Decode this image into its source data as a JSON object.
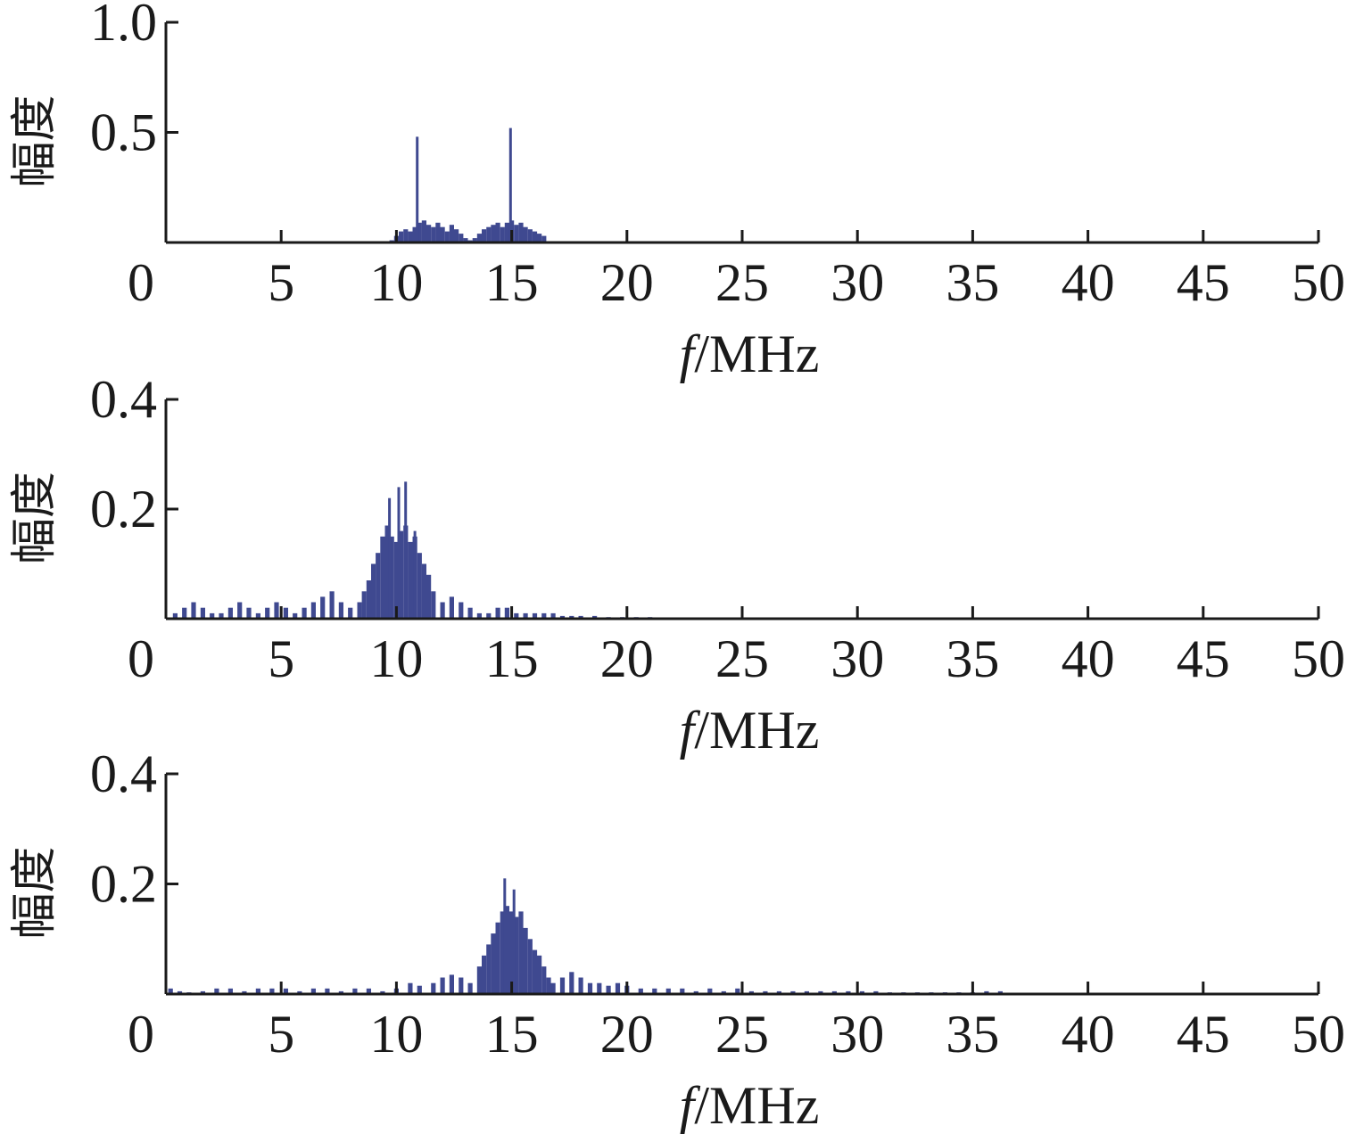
{
  "colors": {
    "series": "#3f4990",
    "axis": "#1a1a1a"
  },
  "chart_data": [
    {
      "type": "bar",
      "xlabel": "f/MHz",
      "xlabel_italic": "f",
      "xlabel_rest": "/MHz",
      "ylabel": "幅度",
      "xlim": [
        0,
        50
      ],
      "ylim": [
        0,
        1.0
      ],
      "xticks": [
        "0",
        "5",
        "10",
        "15",
        "20",
        "25",
        "30",
        "35",
        "40",
        "45",
        "50"
      ],
      "yticks": [
        {
          "value": 0.5,
          "label": "0.5"
        },
        {
          "value": 1.0,
          "label": "1.0"
        }
      ],
      "grid": false,
      "series": [
        {
          "x": [
            9.8,
            10.0,
            10.2,
            10.4,
            10.6,
            10.8,
            11.0,
            11.2,
            11.4,
            11.6,
            11.8,
            12.0,
            12.2,
            12.4,
            12.6,
            12.8,
            13.0,
            13.2,
            13.4,
            13.6,
            13.8,
            14.0,
            14.2,
            14.4,
            14.6,
            14.8,
            15.0,
            15.2,
            15.4,
            15.6,
            15.8,
            16.0,
            16.2,
            16.4
          ],
          "values": [
            0.01,
            0.03,
            0.05,
            0.06,
            0.05,
            0.07,
            0.09,
            0.1,
            0.08,
            0.07,
            0.09,
            0.07,
            0.05,
            0.08,
            0.06,
            0.04,
            0.02,
            0.01,
            0.02,
            0.04,
            0.06,
            0.07,
            0.08,
            0.09,
            0.07,
            0.09,
            0.1,
            0.08,
            0.09,
            0.07,
            0.06,
            0.05,
            0.04,
            0.03
          ],
          "peaks": [
            {
              "x": 10.9,
              "value": 0.48
            },
            {
              "x": 14.95,
              "value": 0.52
            }
          ]
        }
      ]
    },
    {
      "type": "bar",
      "xlabel": "f/MHz",
      "xlabel_italic": "f",
      "xlabel_rest": "/MHz",
      "ylabel": "幅度",
      "xlim": [
        0,
        50
      ],
      "ylim": [
        0,
        0.4
      ],
      "xticks": [
        "0",
        "5",
        "10",
        "15",
        "20",
        "25",
        "30",
        "35",
        "40",
        "45",
        "50"
      ],
      "yticks": [
        {
          "value": 0.2,
          "label": "0.2"
        },
        {
          "value": 0.4,
          "label": "0.4"
        }
      ],
      "grid": false,
      "series": [
        {
          "x": [
            0.4,
            0.8,
            1.2,
            1.6,
            2.0,
            2.4,
            2.8,
            3.2,
            3.6,
            4.0,
            4.4,
            4.8,
            5.2,
            5.6,
            6.0,
            6.4,
            6.8,
            7.2,
            7.6,
            8.0,
            8.4,
            8.6,
            8.8,
            9.0,
            9.2,
            9.4,
            9.6,
            9.8,
            10.0,
            10.2,
            10.4,
            10.6,
            10.8,
            11.0,
            11.2,
            11.4,
            11.6,
            12.0,
            12.4,
            12.8,
            13.2,
            13.6,
            14.0,
            14.4,
            14.8,
            15.2,
            15.6,
            16.0,
            16.4,
            16.8,
            17.2,
            17.6,
            18.0,
            18.6,
            19.2,
            19.8,
            20.4,
            21.0,
            21.6,
            22.2,
            22.8
          ],
          "values": [
            0.01,
            0.02,
            0.03,
            0.02,
            0.01,
            0.01,
            0.02,
            0.03,
            0.02,
            0.01,
            0.02,
            0.03,
            0.02,
            0.01,
            0.02,
            0.03,
            0.04,
            0.05,
            0.03,
            0.02,
            0.03,
            0.05,
            0.07,
            0.1,
            0.12,
            0.15,
            0.17,
            0.15,
            0.14,
            0.16,
            0.17,
            0.14,
            0.15,
            0.12,
            0.1,
            0.08,
            0.05,
            0.03,
            0.04,
            0.03,
            0.02,
            0.01,
            0.01,
            0.02,
            0.02,
            0.01,
            0.01,
            0.01,
            0.01,
            0.01,
            0.005,
            0.005,
            0.005,
            0.005,
            0.003,
            0.003,
            0.003,
            0.003,
            0.002,
            0.002,
            0.002
          ],
          "peaks": [
            {
              "x": 9.7,
              "value": 0.22
            },
            {
              "x": 10.1,
              "value": 0.24
            },
            {
              "x": 10.4,
              "value": 0.25
            },
            {
              "x": 10.8,
              "value": 0.16
            }
          ]
        }
      ]
    },
    {
      "type": "bar",
      "xlabel": "f/MHz",
      "xlabel_italic": "f",
      "xlabel_rest": "/MHz",
      "ylabel": "幅度",
      "xlim": [
        0,
        50
      ],
      "ylim": [
        0,
        0.4
      ],
      "xticks": [
        "0",
        "5",
        "10",
        "15",
        "20",
        "25",
        "30",
        "35",
        "40",
        "45",
        "50"
      ],
      "yticks": [
        {
          "value": 0.2,
          "label": "0.2"
        },
        {
          "value": 0.4,
          "label": "0.4"
        }
      ],
      "grid": false,
      "series": [
        {
          "x": [
            0.2,
            0.6,
            1.0,
            1.6,
            2.2,
            2.8,
            3.4,
            4.0,
            4.6,
            5.2,
            5.8,
            6.4,
            7.0,
            7.6,
            8.2,
            8.8,
            9.4,
            10.0,
            10.6,
            11.0,
            11.6,
            12.0,
            12.4,
            12.8,
            13.2,
            13.6,
            13.8,
            14.0,
            14.2,
            14.4,
            14.6,
            14.8,
            15.0,
            15.2,
            15.4,
            15.6,
            15.8,
            16.0,
            16.2,
            16.4,
            16.6,
            16.8,
            17.2,
            17.6,
            18.0,
            18.4,
            18.8,
            19.2,
            19.6,
            20.0,
            20.6,
            21.2,
            21.8,
            22.4,
            23.0,
            23.6,
            24.2,
            24.8,
            25.4,
            26.0,
            26.6,
            27.2,
            27.8,
            28.4,
            29.0,
            29.6,
            30.2,
            30.8,
            31.4,
            32.0,
            32.6,
            33.2,
            33.8,
            34.4,
            35.0,
            35.6,
            36.2
          ],
          "values": [
            0.01,
            0.005,
            0.003,
            0.005,
            0.01,
            0.01,
            0.005,
            0.01,
            0.01,
            0.01,
            0.005,
            0.01,
            0.01,
            0.005,
            0.01,
            0.01,
            0.005,
            0.01,
            0.02,
            0.015,
            0.02,
            0.03,
            0.035,
            0.03,
            0.02,
            0.05,
            0.07,
            0.09,
            0.11,
            0.13,
            0.15,
            0.16,
            0.15,
            0.14,
            0.15,
            0.12,
            0.1,
            0.08,
            0.07,
            0.05,
            0.03,
            0.02,
            0.03,
            0.04,
            0.03,
            0.02,
            0.02,
            0.015,
            0.02,
            0.015,
            0.01,
            0.01,
            0.01,
            0.01,
            0.005,
            0.01,
            0.005,
            0.01,
            0.005,
            0.005,
            0.005,
            0.005,
            0.005,
            0.005,
            0.005,
            0.005,
            0.005,
            0.005,
            0.003,
            0.003,
            0.003,
            0.003,
            0.003,
            0.003,
            0.003,
            0.005,
            0.005
          ],
          "peaks": [
            {
              "x": 14.7,
              "value": 0.21
            },
            {
              "x": 15.1,
              "value": 0.19
            }
          ]
        }
      ]
    }
  ]
}
